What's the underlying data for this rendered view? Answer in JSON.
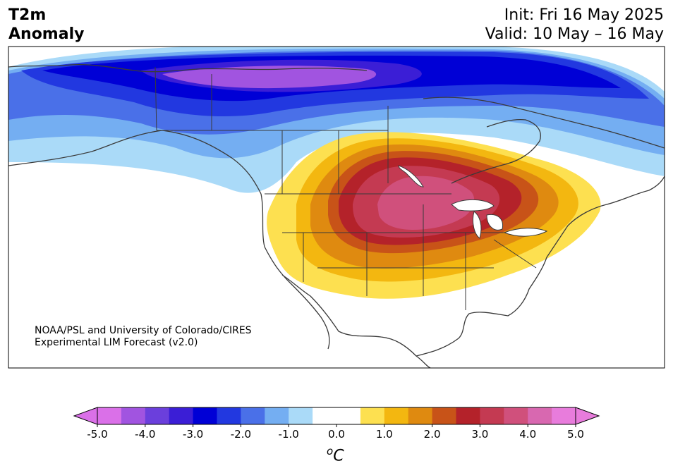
{
  "header": {
    "title_line1": "T2m",
    "title_line2": "Anomaly",
    "init": "Init: Fri 16 May 2025",
    "valid": "Valid: 10 May – 16 May"
  },
  "credit": {
    "line1": "NOAA/PSL and University of Colorado/CIRES",
    "line2": "Experimental LIM Forecast (v2.0)"
  },
  "colorbar": {
    "unit_letter": "C",
    "unit_sup": "o",
    "tick_labels": [
      "-5.0",
      "-4.0",
      "-3.0",
      "-2.0",
      "-1.0",
      "0.0",
      "1.0",
      "2.0",
      "3.0",
      "4.0",
      "5.0"
    ],
    "colors": [
      "#da70e8",
      "#a154e0",
      "#6b3fdc",
      "#3b1ed6",
      "#0000d6",
      "#2238e0",
      "#4a70e8",
      "#74aef2",
      "#aadaf8",
      "#ffffff",
      "#ffffff",
      "#fde050",
      "#f3b710",
      "#df8a10",
      "#c85318",
      "#b4222a",
      "#c43a52",
      "#d0507c",
      "#d868b0",
      "#e87cdc"
    ],
    "under_color": "#da70e8",
    "over_color": "#e87cdc"
  },
  "colors": {
    "map_frame": "#000000",
    "borders": "#3a3a3a",
    "land": "#ffffff"
  }
}
